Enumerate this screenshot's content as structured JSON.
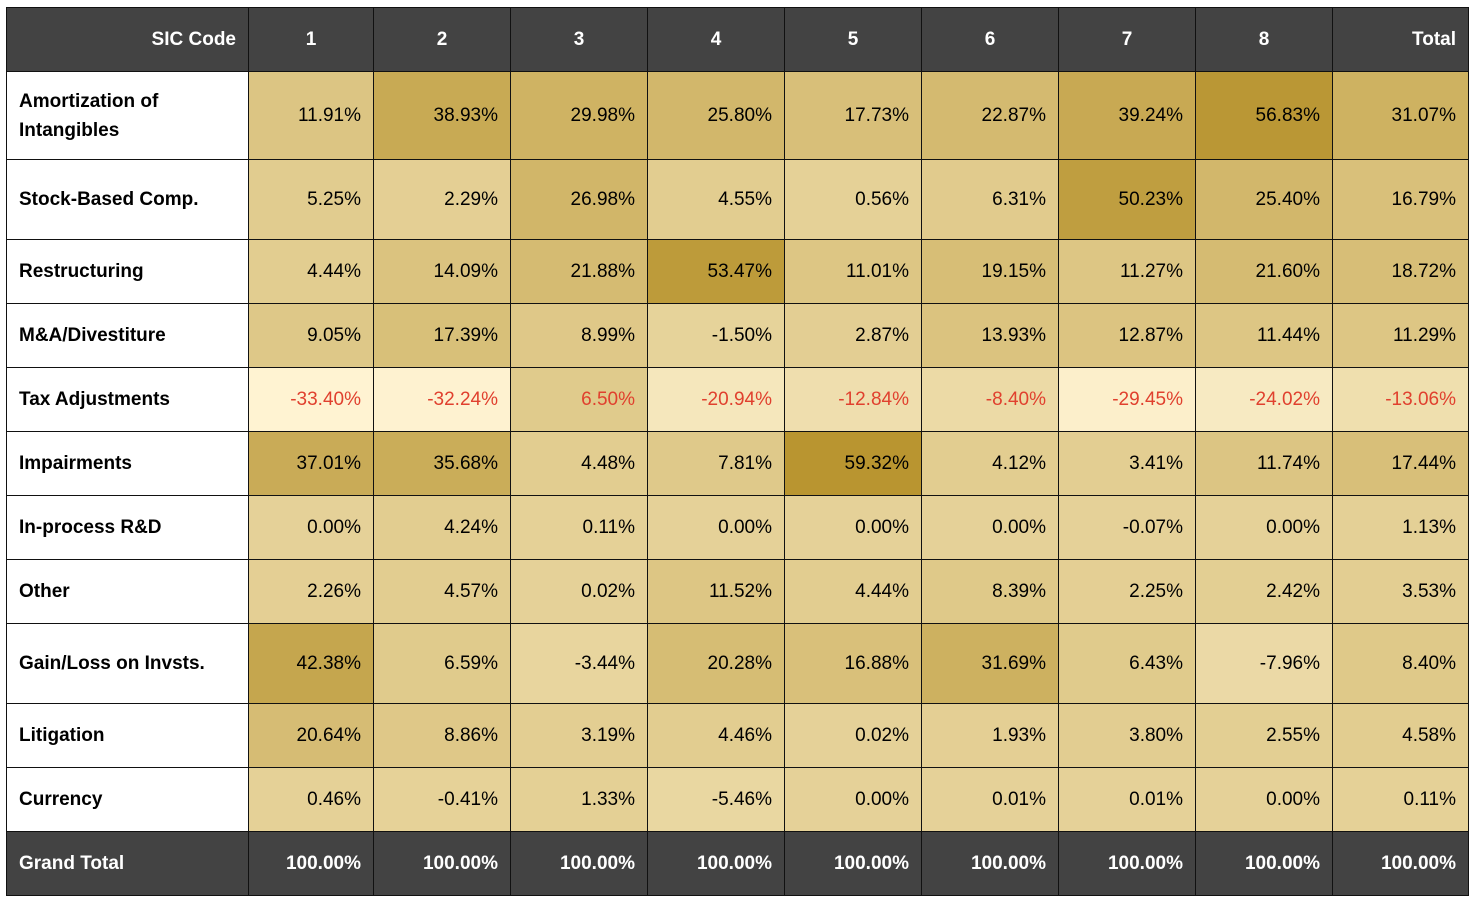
{
  "chart_data": {
    "type": "heatmap",
    "corner_label": "SIC Code",
    "columns": [
      "1",
      "2",
      "3",
      "4",
      "5",
      "6",
      "7",
      "8",
      "Total"
    ],
    "rows": [
      {
        "label": "Amortization of Intangibles",
        "values": [
          "11.91%",
          "38.93%",
          "29.98%",
          "25.80%",
          "17.73%",
          "22.87%",
          "39.24%",
          "56.83%",
          "31.07%"
        ],
        "numeric": [
          11.91,
          38.93,
          29.98,
          25.8,
          17.73,
          22.87,
          39.24,
          56.83,
          31.07
        ]
      },
      {
        "label": "Stock-Based Comp.",
        "values": [
          "5.25%",
          "2.29%",
          "26.98%",
          "4.55%",
          "0.56%",
          "6.31%",
          "50.23%",
          "25.40%",
          "16.79%"
        ],
        "numeric": [
          5.25,
          2.29,
          26.98,
          4.55,
          0.56,
          6.31,
          50.23,
          25.4,
          16.79
        ]
      },
      {
        "label": "Restructuring",
        "values": [
          "4.44%",
          "14.09%",
          "21.88%",
          "53.47%",
          "11.01%",
          "19.15%",
          "11.27%",
          "21.60%",
          "18.72%"
        ],
        "numeric": [
          4.44,
          14.09,
          21.88,
          53.47,
          11.01,
          19.15,
          11.27,
          21.6,
          18.72
        ]
      },
      {
        "label": "M&A/Divestiture",
        "values": [
          "9.05%",
          "17.39%",
          "8.99%",
          "-1.50%",
          "2.87%",
          "13.93%",
          "12.87%",
          "11.44%",
          "11.29%"
        ],
        "numeric": [
          9.05,
          17.39,
          8.99,
          -1.5,
          2.87,
          13.93,
          12.87,
          11.44,
          11.29
        ]
      },
      {
        "label": "Tax Adjustments",
        "values": [
          "-33.40%",
          "-32.24%",
          "6.50%",
          "-20.94%",
          "-12.84%",
          "-8.40%",
          "-29.45%",
          "-24.02%",
          "-13.06%"
        ],
        "numeric": [
          -33.4,
          -32.24,
          6.5,
          -20.94,
          -12.84,
          -8.4,
          -29.45,
          -24.02,
          -13.06
        ],
        "red_text": true
      },
      {
        "label": "Impairments",
        "values": [
          "37.01%",
          "35.68%",
          "4.48%",
          "7.81%",
          "59.32%",
          "4.12%",
          "3.41%",
          "11.74%",
          "17.44%"
        ],
        "numeric": [
          37.01,
          35.68,
          4.48,
          7.81,
          59.32,
          4.12,
          3.41,
          11.74,
          17.44
        ]
      },
      {
        "label": "In-process R&D",
        "values": [
          "0.00%",
          "4.24%",
          "0.11%",
          "0.00%",
          "0.00%",
          "0.00%",
          "-0.07%",
          "0.00%",
          "1.13%"
        ],
        "numeric": [
          0.0,
          4.24,
          0.11,
          0.0,
          0.0,
          0.0,
          -0.07,
          0.0,
          1.13
        ]
      },
      {
        "label": "Other",
        "values": [
          "2.26%",
          "4.57%",
          "0.02%",
          "11.52%",
          "4.44%",
          "8.39%",
          "2.25%",
          "2.42%",
          "3.53%"
        ],
        "numeric": [
          2.26,
          4.57,
          0.02,
          11.52,
          4.44,
          8.39,
          2.25,
          2.42,
          3.53
        ]
      },
      {
        "label": "Gain/Loss on Invsts.",
        "values": [
          "42.38%",
          "6.59%",
          "-3.44%",
          "20.28%",
          "16.88%",
          "31.69%",
          "6.43%",
          "-7.96%",
          "8.40%"
        ],
        "numeric": [
          42.38,
          6.59,
          -3.44,
          20.28,
          16.88,
          31.69,
          6.43,
          -7.96,
          8.4
        ]
      },
      {
        "label": "Litigation",
        "values": [
          "20.64%",
          "8.86%",
          "3.19%",
          "4.46%",
          "0.02%",
          "1.93%",
          "3.80%",
          "2.55%",
          "4.58%"
        ],
        "numeric": [
          20.64,
          8.86,
          3.19,
          4.46,
          0.02,
          1.93,
          3.8,
          2.55,
          4.58
        ]
      },
      {
        "label": "Currency",
        "values": [
          "0.46%",
          "-0.41%",
          "1.33%",
          "-5.46%",
          "0.00%",
          "0.01%",
          "0.01%",
          "0.00%",
          "0.11%"
        ],
        "numeric": [
          0.46,
          -0.41,
          1.33,
          -5.46,
          0.0,
          0.01,
          0.01,
          0.0,
          0.11
        ]
      }
    ],
    "total_row": {
      "label": "Grand Total",
      "values": [
        "100.00%",
        "100.00%",
        "100.00%",
        "100.00%",
        "100.00%",
        "100.00%",
        "100.00%",
        "100.00%",
        "100.00%"
      ]
    },
    "color_scale": {
      "low": "#fff4d3",
      "high": "#b8942f",
      "min_value": -34,
      "max_value": 60
    },
    "colors": {
      "header_bg": "#434343",
      "header_text": "#ffffff",
      "negative_text": "#e0402e",
      "border": "#111111"
    }
  }
}
